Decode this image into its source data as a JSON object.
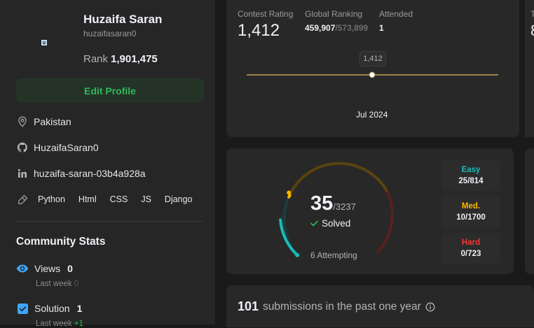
{
  "profile": {
    "name": "Huzaifa Saran",
    "username": "huzaifasaran0",
    "rank_label": "Rank",
    "rank_value": "1,901,475",
    "edit_button": "Edit Profile",
    "location": "Pakistan",
    "github": "HuzaifaSaran0",
    "linkedin": "huzaifa-saran-03b4a928a",
    "skills": [
      "Python",
      "Html",
      "CSS",
      "JS",
      "Django"
    ]
  },
  "community": {
    "title": "Community Stats",
    "views": {
      "label": "Views",
      "value": "0",
      "sub": "Last week",
      "delta": "0"
    },
    "solution": {
      "label": "Solution",
      "value": "1",
      "sub": "Last week",
      "delta": "+1"
    }
  },
  "contest": {
    "rating_label": "Contest Rating",
    "rating_value": "1,412",
    "global_label": "Global Ranking",
    "global_value": "459,907",
    "global_total": "/573,899",
    "attended_label": "Attended",
    "attended_value": "1",
    "edge_label": "T",
    "edge_value": "8",
    "tooltip": "1,412",
    "x_label": "Jul 2024"
  },
  "solved": {
    "count": "35",
    "total": "/3237",
    "label": "Solved",
    "attempting": "6 Attempting",
    "difficulties": [
      {
        "name": "Easy",
        "count": "25/814",
        "color": "#1cbaba"
      },
      {
        "name": "Med.",
        "count": "10/1700",
        "color": "#ffb700"
      },
      {
        "name": "Hard",
        "count": "0/723",
        "color": "#f63737"
      }
    ]
  },
  "submissions": {
    "count": "101",
    "text": "submissions in the past one year"
  },
  "colors": {
    "easy": "#1cbaba",
    "medium": "#ffb700",
    "hard": "#f63737",
    "accent_green": "#2cbb5d",
    "chart_line": "#a08048"
  },
  "icons": [
    "avatar-image",
    "location-icon",
    "github-icon",
    "linkedin-icon",
    "tag-icon",
    "eye-icon",
    "check-box-icon",
    "check-icon",
    "info-icon"
  ]
}
